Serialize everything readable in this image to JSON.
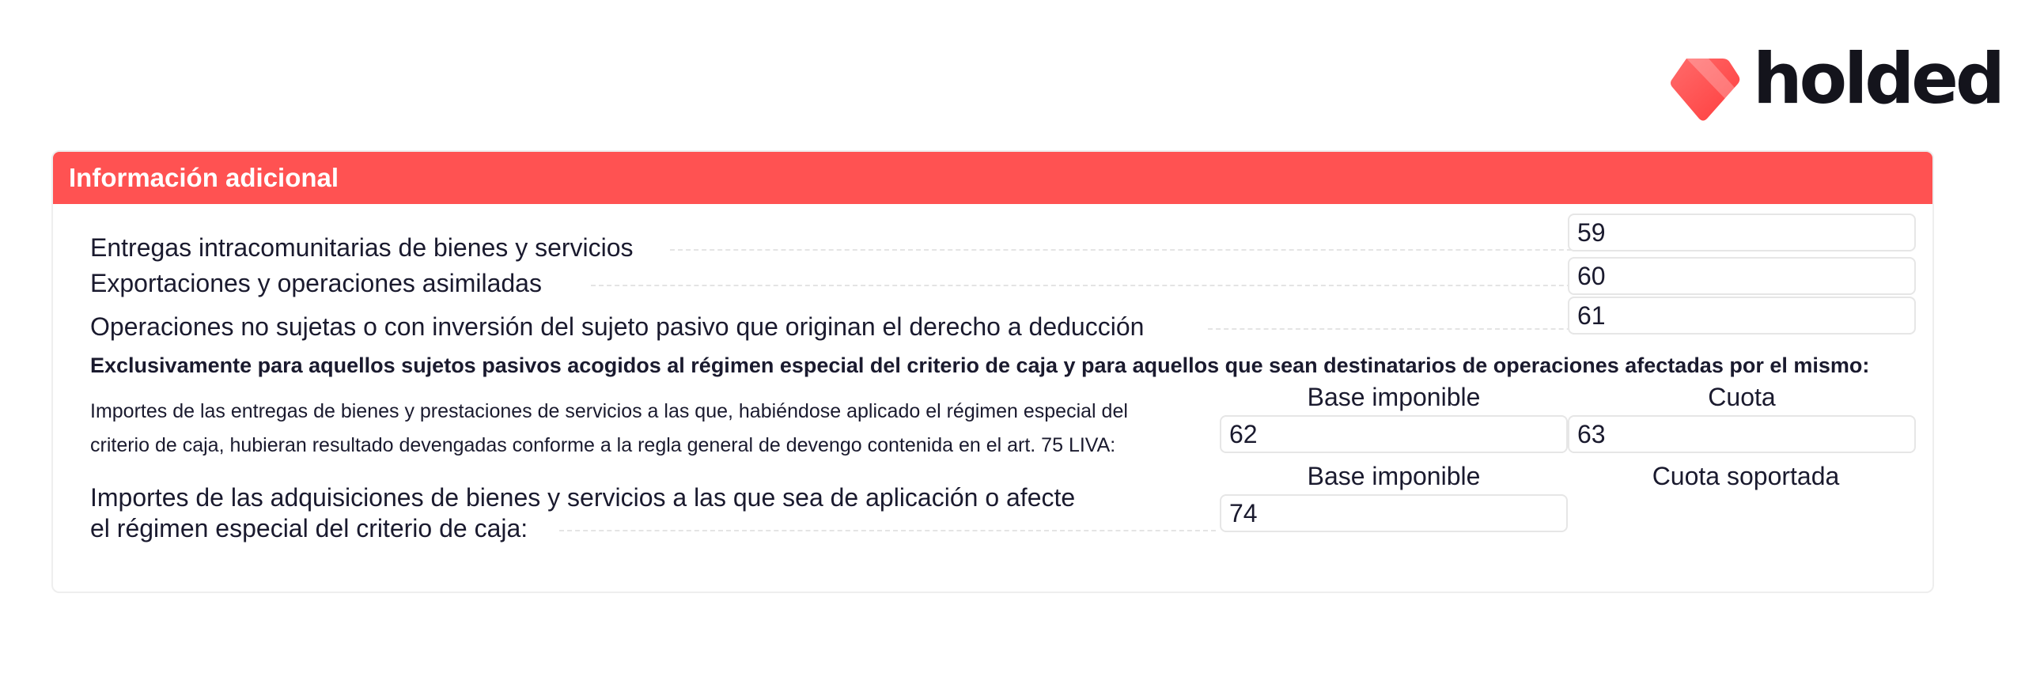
{
  "brand": {
    "name": "holded",
    "accent": "#ff5252",
    "logo_icon": "diamond-logo-icon"
  },
  "section": {
    "title": "Información adicional"
  },
  "rows": [
    {
      "label": "Entregas intracomunitarias de bienes y servicios",
      "box": "59"
    },
    {
      "label": "Exportaciones y operaciones asimiladas",
      "box": "60"
    },
    {
      "label": "Operaciones no sujetas o con inversión del sujeto pasivo que originan el derecho a deducción",
      "box": "61"
    }
  ],
  "cash_regime": {
    "note": "Exclusivamente para aquellos sujetos pasivos acogidos al régimen especial del criterio de caja y para aquellos que sean destinatarios de operaciones afectadas por el mismo:",
    "deliveries": {
      "label_line1": "Importes de las entregas de bienes y prestaciones de servicios a las que, habiéndose aplicado el régimen especial del",
      "label_line2": "criterio de caja, hubieran resultado devengadas conforme a la regla general de devengo contenida en el art. 75 LIVA:",
      "col_base": "Base imponible",
      "col_quota": "Cuota",
      "box_base": "62",
      "box_quota": "63"
    },
    "acquisitions": {
      "label_line1": "Importes de las adquisiciones de bienes y servicios a las que sea de aplicación o afecte",
      "label_line2": "el régimen especial del criterio de caja:",
      "col_base": "Base imponible",
      "col_quota": "Cuota soportada",
      "box_base": "74"
    }
  }
}
